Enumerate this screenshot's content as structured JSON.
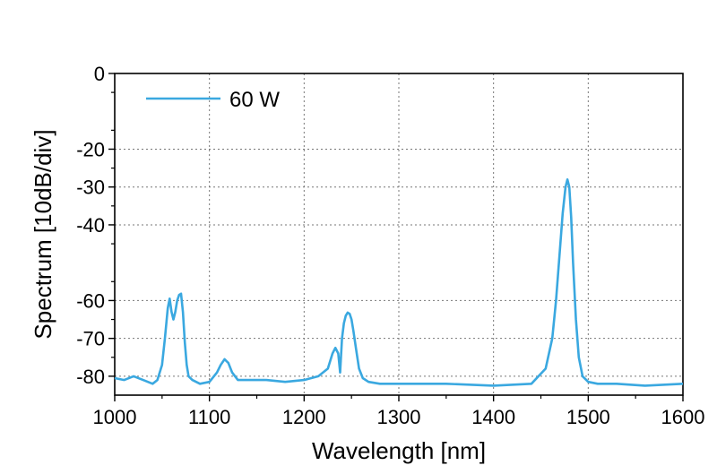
{
  "chart_data": {
    "type": "line",
    "xlabel": "Wavelength [nm]",
    "ylabel": "Spectrum [10dB/div]",
    "xlim": [
      1000,
      1600
    ],
    "ylim": [
      -85,
      0
    ],
    "xticks": [
      1000,
      1100,
      1200,
      1300,
      1400,
      1500,
      1600
    ],
    "xtick_labels": [
      "1000",
      "1100",
      "1200",
      "1300",
      "1400",
      "1500",
      "1600"
    ],
    "yticks": [
      0,
      -20,
      -30,
      -40,
      -60,
      -70,
      -80
    ],
    "ytick_labels": [
      "0",
      "-20",
      "-30",
      "-40",
      "-60",
      "-70",
      "-80"
    ],
    "grid": true,
    "legend_position": "top-left",
    "series": [
      {
        "name": "60 W",
        "color": "#3aa8e0",
        "x": [
          1000,
          1010,
          1020,
          1030,
          1040,
          1045,
          1050,
          1053,
          1056,
          1058,
          1060,
          1062,
          1064,
          1066,
          1068,
          1070,
          1072,
          1074,
          1076,
          1078,
          1082,
          1090,
          1100,
          1108,
          1112,
          1116,
          1120,
          1124,
          1130,
          1140,
          1160,
          1180,
          1200,
          1215,
          1225,
          1230,
          1233,
          1236,
          1238,
          1240,
          1242,
          1244,
          1246,
          1248,
          1250,
          1252,
          1255,
          1258,
          1262,
          1268,
          1280,
          1300,
          1350,
          1400,
          1440,
          1455,
          1462,
          1466,
          1470,
          1473,
          1476,
          1478,
          1480,
          1482,
          1484,
          1487,
          1490,
          1494,
          1500,
          1510,
          1530,
          1560,
          1600
        ],
        "y": [
          -80.5,
          -81,
          -80,
          -81,
          -82,
          -81,
          -77,
          -70,
          -62,
          -59.5,
          -63,
          -65,
          -63,
          -60,
          -58.5,
          -58.2,
          -63,
          -71,
          -77,
          -80,
          -81,
          -82,
          -81.5,
          -79,
          -77,
          -75.5,
          -76.5,
          -79,
          -81,
          -81,
          -81,
          -81.5,
          -81,
          -80,
          -78,
          -74,
          -72.5,
          -74,
          -79,
          -70,
          -66,
          -64,
          -63.2,
          -63.5,
          -65,
          -68,
          -73,
          -78,
          -80.5,
          -81.5,
          -82,
          -82,
          -82,
          -82.5,
          -82,
          -78,
          -70,
          -60,
          -47,
          -37,
          -30,
          -28,
          -30,
          -38,
          -50,
          -65,
          -75,
          -80,
          -81.5,
          -82,
          -82,
          -82.5,
          -82
        ]
      }
    ]
  }
}
